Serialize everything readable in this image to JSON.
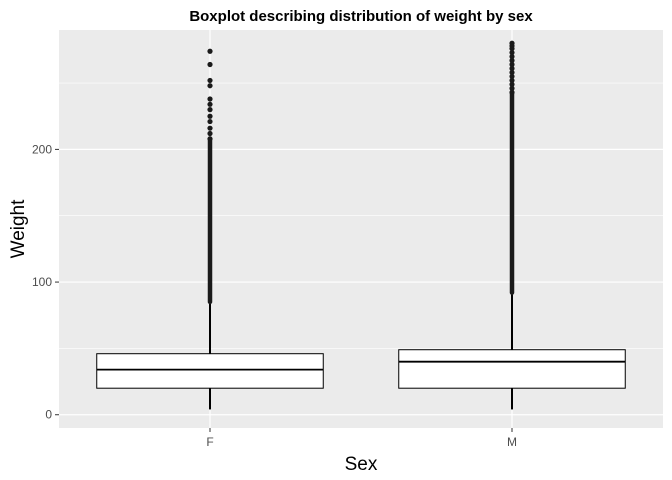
{
  "chart_data": {
    "type": "boxplot",
    "title": "Boxplot describing distribution of weight by sex",
    "xlabel": "Sex",
    "ylabel": "Weight",
    "categories": [
      "F",
      "M"
    ],
    "ylim": [
      -10,
      290
    ],
    "yticks": [
      0,
      100,
      200
    ],
    "grid": true,
    "legend": "none",
    "colors": {
      "panel": "#ebebeb",
      "grid": "#ffffff",
      "box_fill": "#ffffff",
      "line": "#000000",
      "outlier": "#1a1a1a"
    },
    "boxes": [
      {
        "category": "F",
        "min": 4,
        "q1": 20,
        "median": 34,
        "q3": 46,
        "whisker_max": 85,
        "outliers": [
          274,
          264,
          252,
          248,
          238,
          234,
          230,
          225,
          221,
          216,
          212,
          208
        ]
      },
      {
        "category": "M",
        "min": 4,
        "q1": 20,
        "median": 40,
        "q3": 49,
        "whisker_max": 92,
        "outliers": [
          280,
          278,
          276,
          273,
          270,
          267,
          264,
          261,
          258,
          255,
          252,
          249,
          246,
          243
        ]
      }
    ]
  }
}
